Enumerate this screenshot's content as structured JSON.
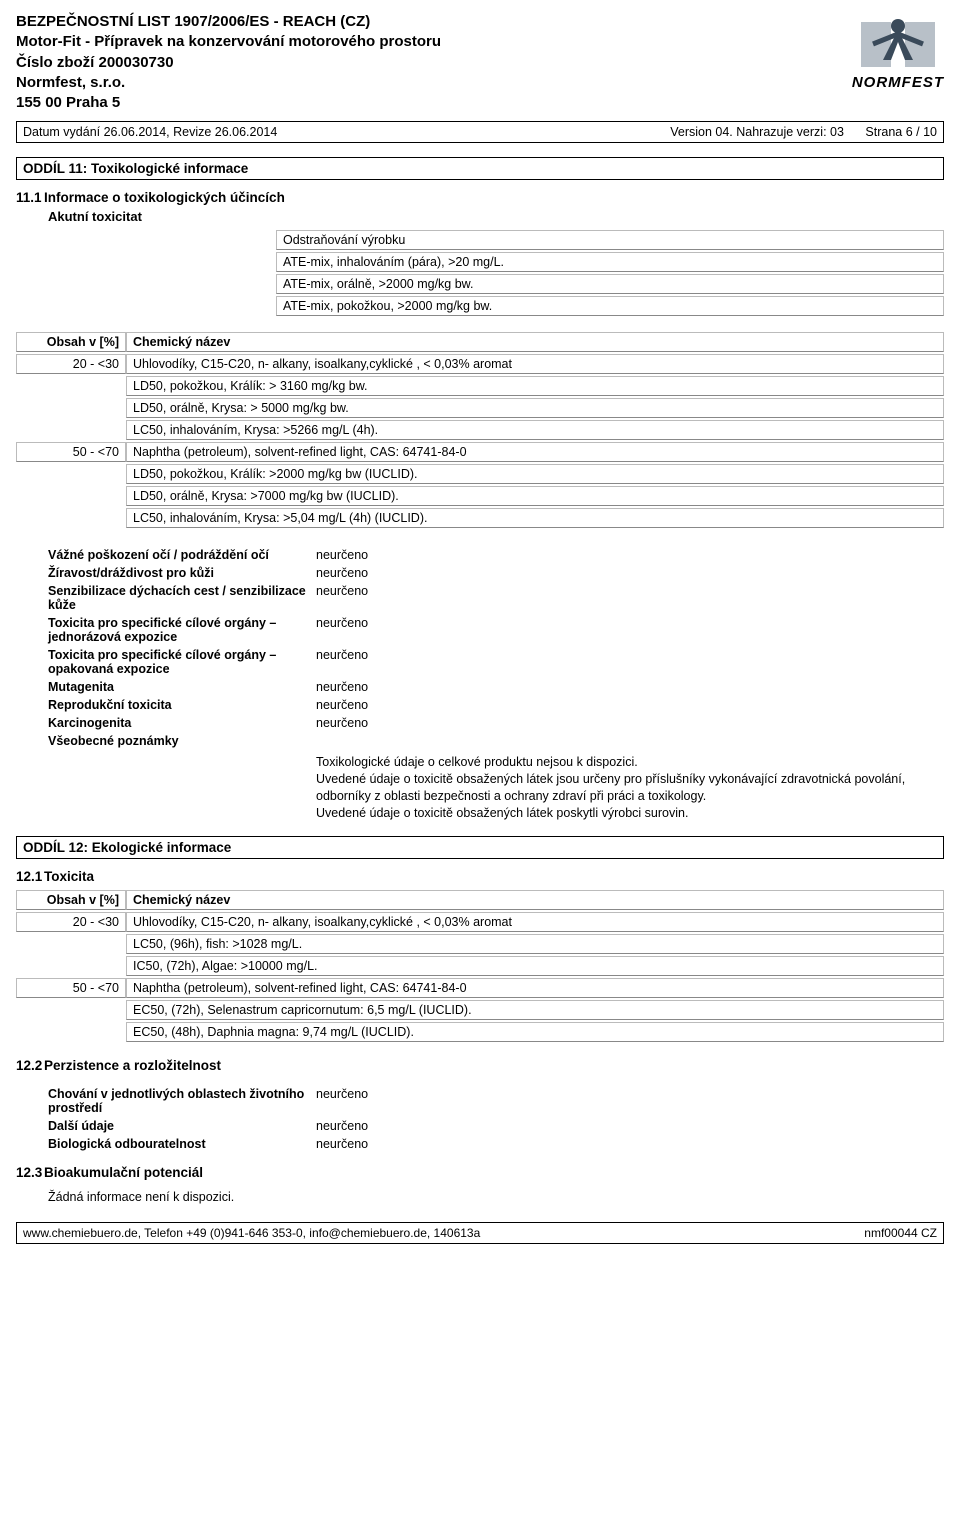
{
  "header": {
    "line1": "BEZPEČNOSTNÍ LIST 1907/2006/ES - REACH (CZ)",
    "line2": "Motor-Fit - Přípravek na konzervování motorového prostoru",
    "line3": "Číslo zboží 200030730",
    "line4": "Normfest, s.r.o.",
    "line5": "155 00 Praha 5",
    "logo_text": "NORMFEST",
    "logo_colors": {
      "fg": "#3a4a5a",
      "accent": "#6b7a88"
    }
  },
  "meta": {
    "left": "Datum vydání 26.06.2014, Revize 26.06.2014",
    "version": "Version 04. Nahrazuje verzi: 03",
    "page": "Strana 6 / 10"
  },
  "s11": {
    "title": "ODDÍL 11: Toxikologické informace",
    "sub_num": "11.1",
    "sub_title": "Informace o toxikologických účincích",
    "akutni": "Akutní toxicitat",
    "removal_hdr": "Odstraňování výrobku",
    "removal_rows": [
      "ATE-mix, inhalováním (pára), >20 mg/L.",
      "ATE-mix, orálně, >2000 mg/kg bw.",
      "ATE-mix, pokožkou, >2000 mg/kg bw."
    ],
    "tox_table": {
      "col1_hdr": "Obsah v [%]",
      "col2_hdr": "Chemický název",
      "groups": [
        {
          "range": "20 - <30",
          "name": "Uhlovodíky, C15-C20,  n- alkany, isoalkany,cyklické , < 0,03% aromat",
          "rows": [
            "LD50, pokožkou, Králík: > 3160 mg/kg bw.",
            "LD50, orálně, Krysa: > 5000 mg/kg bw.",
            "LC50, inhalováním, Krysa: >5266 mg/L (4h)."
          ]
        },
        {
          "range": "50 - <70",
          "name": "Naphtha (petroleum), solvent-refined light, CAS: 64741-84-0",
          "rows": [
            "LD50, pokožkou, Králík: >2000 mg/kg bw (IUCLID).",
            "LD50, orálně, Krysa: >7000 mg/kg bw (IUCLID).",
            "LC50, inhalováním, Krysa: >5,04 mg/L (4h) (IUCLID)."
          ]
        }
      ]
    },
    "props": [
      {
        "label": "Vážné poškození očí / podráždění očí",
        "value": "neurčeno"
      },
      {
        "label": "Žíravost/dráždivost pro kůži",
        "value": "neurčeno"
      },
      {
        "label": "Senzibilizace dýchacích cest / senzibilizace kůže",
        "value": "neurčeno"
      },
      {
        "label": "Toxicita pro specifické cílové orgány – jednorázová expozice",
        "value": "neurčeno"
      },
      {
        "label": "Toxicita pro specifické cílové orgány – opakovaná expozice",
        "value": "neurčeno"
      },
      {
        "label": "Mutagenita",
        "value": "neurčeno"
      },
      {
        "label": "Reprodukční toxicita",
        "value": "neurčeno"
      },
      {
        "label": "Karcinogenita",
        "value": "neurčeno"
      },
      {
        "label": "Všeobecné poznámky",
        "value": ""
      }
    ],
    "notes": [
      "Toxikologické údaje o celkové produktu nejsou k dispozici.",
      "Uvedené údaje o toxicitě obsažených látek jsou určeny pro příslušníky vykonávající zdravotnická povolání, odborníky z oblasti bezpečnosti a ochrany zdraví při práci a toxikology.",
      "Uvedené údaje o toxicitě obsažených látek poskytli výrobci surovin."
    ]
  },
  "s12": {
    "title": "ODDÍL 12: Ekologické informace",
    "sub1_num": "12.1",
    "sub1_title": "Toxicita",
    "eco_table": {
      "col1_hdr": "Obsah v [%]",
      "col2_hdr": "Chemický název",
      "groups": [
        {
          "range": "20 - <30",
          "name": "Uhlovodíky, C15-C20,  n- alkany, isoalkany,cyklické , < 0,03% aromat",
          "rows": [
            "LC50, (96h), fish: >1028 mg/L.",
            "IC50, (72h), Algae: >10000 mg/L."
          ]
        },
        {
          "range": "50 - <70",
          "name": "Naphtha (petroleum), solvent-refined light, CAS: 64741-84-0",
          "rows": [
            "EC50, (72h), Selenastrum capricornutum: 6,5 mg/L (IUCLID).",
            "EC50, (48h), Daphnia magna: 9,74 mg/L (IUCLID)."
          ]
        }
      ]
    },
    "sub2_num": "12.2",
    "sub2_title": "Perzistence a rozložitelnost",
    "props2": [
      {
        "label": "Chování v jednotlivých oblastech životního prostředí",
        "value": "neurčeno"
      },
      {
        "label": "Další údaje",
        "value": "neurčeno"
      },
      {
        "label": "Biologická odbouratelnost",
        "value": "neurčeno"
      }
    ],
    "sub3_num": "12.3",
    "sub3_title": "Bioakumulační potenciál",
    "sub3_text": "Žádná informace není k dispozici."
  },
  "footer": {
    "left": "www.chemiebuero.de, Telefon +49 (0)941-646 353-0, info@chemiebuero.de, 140613a",
    "right": "nmf00044 CZ"
  }
}
